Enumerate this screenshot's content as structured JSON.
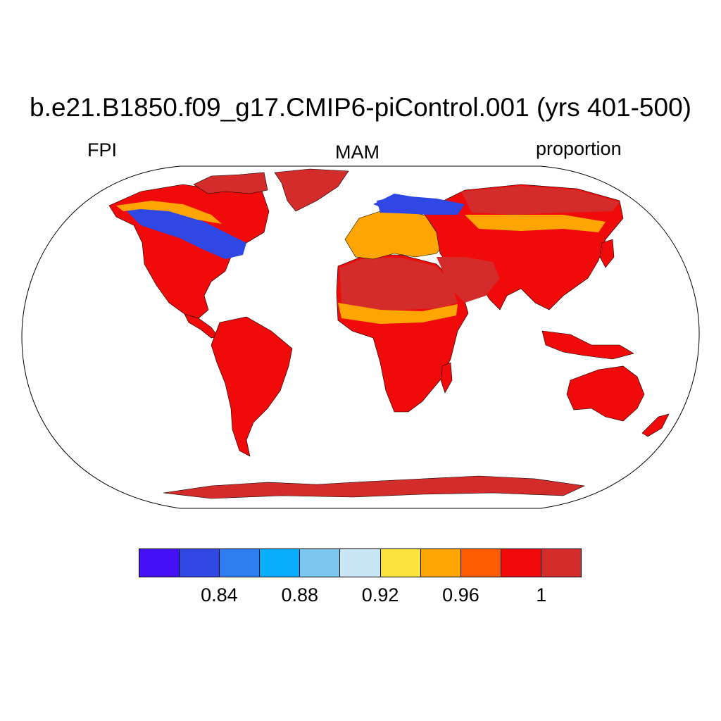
{
  "title": "b.e21.B1850.f09_g17.CMIP6-piControl.001 (yrs 401-500)",
  "left_string": "FPI",
  "center_string": "MAM",
  "right_string": "proportion",
  "colorbar": {
    "colors": [
      "#4410f5",
      "#2f47e3",
      "#2e7ef0",
      "#08adfb",
      "#7ac6ee",
      "#c9e6f6",
      "#fce23a",
      "#fca503",
      "#fc5b00",
      "#f00a0a",
      "#d42b2b"
    ],
    "labels": [
      "0.84",
      "0.88",
      "0.92",
      "0.96",
      "1"
    ]
  },
  "colors": {
    "dominant_land": "#f00a0a",
    "arid_land": "#d42b2b",
    "boreal_band": "#2f47e3",
    "transition": "#fca503"
  }
}
